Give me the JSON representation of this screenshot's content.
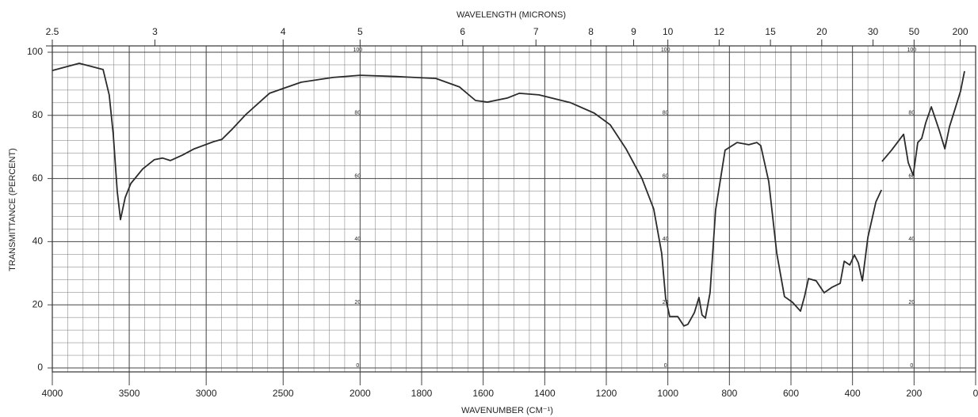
{
  "chart_data": {
    "type": "line",
    "title": "WAVELENGTH (MICRONS)",
    "xlabel": "WAVENUMBER (CM⁻¹)",
    "ylabel": "TRANSMITTANCE (PERCENT)",
    "xlim": [
      4000,
      0
    ],
    "x_scale_break": 2000,
    "x_scale_ratio": 2,
    "xticks": [
      4000,
      3500,
      3000,
      2500,
      2000,
      1800,
      1600,
      1400,
      1200,
      1000,
      800,
      600,
      400,
      200,
      0
    ],
    "x2ticks": [
      2.5,
      3,
      4,
      5,
      6,
      7,
      8,
      9,
      10,
      12,
      15,
      20,
      30,
      50,
      200
    ],
    "ylim": [
      0,
      100
    ],
    "yticks": [
      0,
      20,
      40,
      60,
      80,
      100
    ],
    "inner_label_columns": [
      2000,
      1000,
      200
    ],
    "grid": true,
    "series": [
      {
        "color": "#2b2b2b",
        "x": [
          4000,
          3825,
          3670,
          3630,
          3604,
          3578,
          3557,
          3526,
          3490,
          3413,
          3336,
          3284,
          3233,
          3155,
          3078,
          2950,
          2898,
          2836,
          2744,
          2589,
          2383,
          2177,
          2000,
          1883,
          1754,
          1677,
          1625,
          1586,
          1522,
          1483,
          1419,
          1316,
          1239,
          1187,
          1136,
          1084,
          1046,
          1020,
          1007,
          994,
          968,
          948,
          935,
          914,
          899,
          889,
          878,
          863,
          845,
          814,
          775,
          737,
          711,
          698,
          672,
          646,
          621,
          595,
          569,
          556,
          543,
          518,
          492,
          466,
          440,
          427,
          409,
          394,
          381,
          368,
          350,
          324,
          306,
          305,
          304,
          273,
          234,
          219,
          203,
          188,
          175,
          162,
          144,
          131,
          118,
          100,
          85,
          67,
          49,
          36
        ],
        "values": [
          94.2,
          96.5,
          94.5,
          86.5,
          74,
          56,
          47,
          54,
          58.4,
          63,
          66,
          66.5,
          65.7,
          67.4,
          69.4,
          71.7,
          72.4,
          75.4,
          80.2,
          87,
          90.5,
          92,
          92.7,
          92.3,
          91.7,
          89,
          84.7,
          84.2,
          85.5,
          87,
          86.5,
          84,
          80.7,
          77,
          69.4,
          60,
          50.4,
          36.3,
          22,
          16.3,
          16.3,
          13.3,
          13.8,
          17.5,
          22.3,
          16.8,
          15.8,
          23.8,
          50,
          69,
          71.4,
          70.7,
          71.4,
          70.4,
          59,
          36.3,
          22.6,
          20.8,
          18,
          22.6,
          28.3,
          27.6,
          23.8,
          25.6,
          26.8,
          33.8,
          32.6,
          35.8,
          33.3,
          27.6,
          41.4,
          52.6,
          56.4,
          null,
          65.4,
          69,
          74,
          65,
          61,
          71.4,
          72.7,
          77.7,
          82.7,
          79,
          75.2,
          69.4,
          76.4,
          82,
          87.7,
          94
        ]
      }
    ]
  }
}
